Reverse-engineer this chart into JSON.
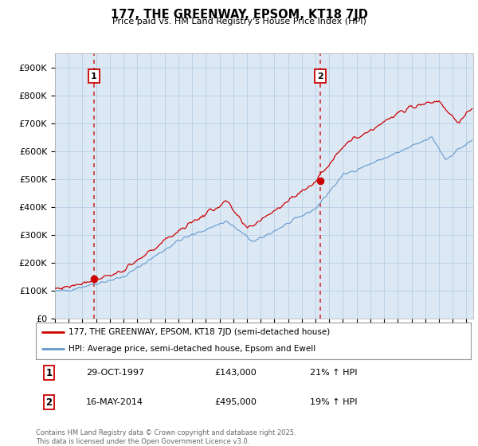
{
  "title": "177, THE GREENWAY, EPSOM, KT18 7JD",
  "subtitle": "Price paid vs. HM Land Registry's House Price Index (HPI)",
  "ylim": [
    0,
    950000
  ],
  "yticks": [
    0,
    100000,
    200000,
    300000,
    400000,
    500000,
    600000,
    700000,
    800000,
    900000
  ],
  "ytick_labels": [
    "£0",
    "£100K",
    "£200K",
    "£300K",
    "£400K",
    "£500K",
    "£600K",
    "£700K",
    "£800K",
    "£900K"
  ],
  "xmin": 1995.0,
  "xmax": 2025.5,
  "sale1_x": 1997.83,
  "sale1_y": 143000,
  "sale2_x": 2014.37,
  "sale2_y": 495000,
  "legend_line1": "177, THE GREENWAY, EPSOM, KT18 7JD (semi-detached house)",
  "legend_line2": "HPI: Average price, semi-detached house, Epsom and Ewell",
  "annotation1_label": "1",
  "annotation1_date": "29-OCT-1997",
  "annotation1_price": "£143,000",
  "annotation1_hpi": "21% ↑ HPI",
  "annotation2_label": "2",
  "annotation2_date": "16-MAY-2014",
  "annotation2_price": "£495,000",
  "annotation2_hpi": "19% ↑ HPI",
  "line_color_property": "#cc0000",
  "line_color_hpi": "#6699cc",
  "chart_bg": "#dce9f5",
  "footer": "Contains HM Land Registry data © Crown copyright and database right 2025.\nThis data is licensed under the Open Government Licence v3.0.",
  "background_color": "#ffffff",
  "grid_color": "#b0c8e0"
}
